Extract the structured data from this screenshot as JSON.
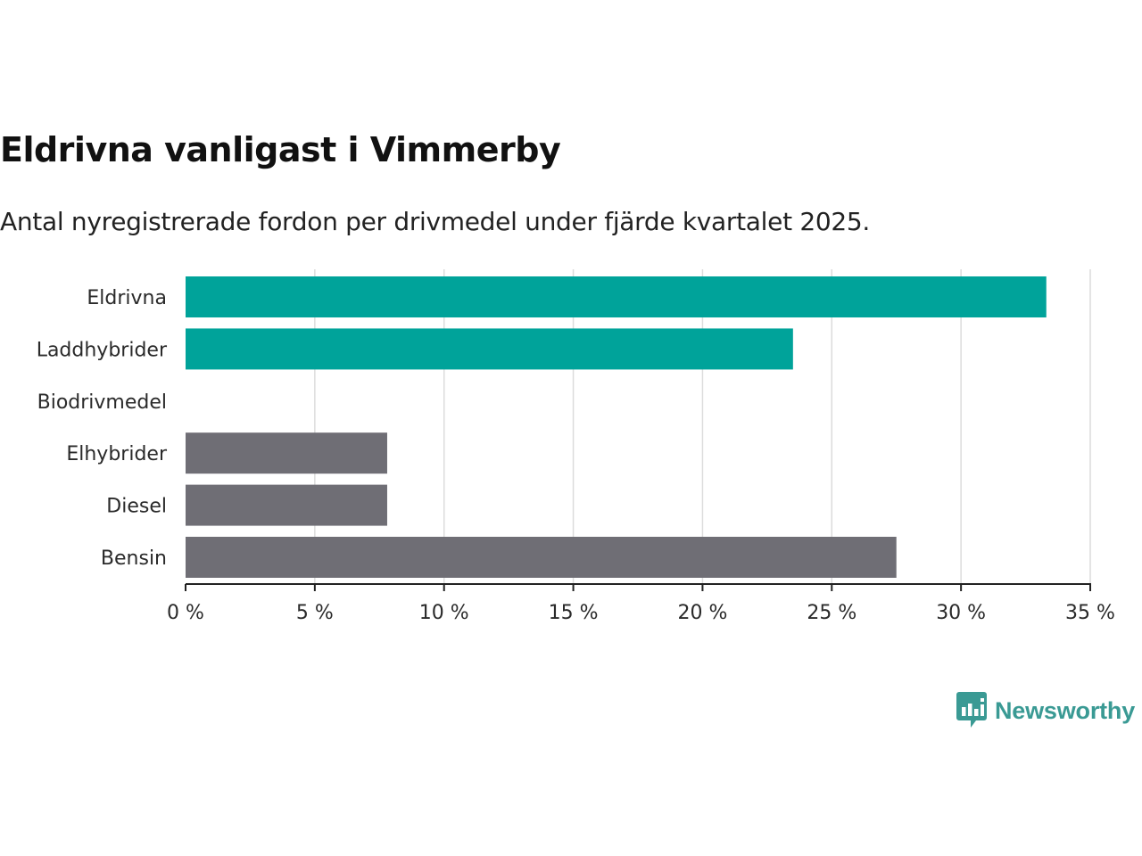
{
  "chart_data": {
    "type": "bar",
    "orientation": "horizontal",
    "title": "Eldrivna vanligast i Vimmerby",
    "subtitle": "Antal nyregistrerade fordon per drivmedel under fjärde kvartalet 2025.",
    "categories": [
      "Eldrivna",
      "Laddhybrider",
      "Biodrivmedel",
      "Elhybrider",
      "Diesel",
      "Bensin"
    ],
    "values": [
      33.3,
      23.5,
      0,
      7.8,
      7.8,
      27.5
    ],
    "bar_colors": [
      "#00a39a",
      "#00a39a",
      "#00a39a",
      "#6f6e75",
      "#6f6e75",
      "#6f6e75"
    ],
    "xlabel": "",
    "ylabel": "",
    "xlim": [
      0,
      35
    ],
    "xticks": [
      0,
      5,
      10,
      15,
      20,
      25,
      30,
      35
    ],
    "xtick_labels": [
      "0 %",
      "5 %",
      "10 %",
      "15 %",
      "20 %",
      "25 %",
      "30 %",
      "35 %"
    ],
    "grid": true
  },
  "brand": {
    "name": "Newsworthy",
    "color": "#3a9a94"
  }
}
